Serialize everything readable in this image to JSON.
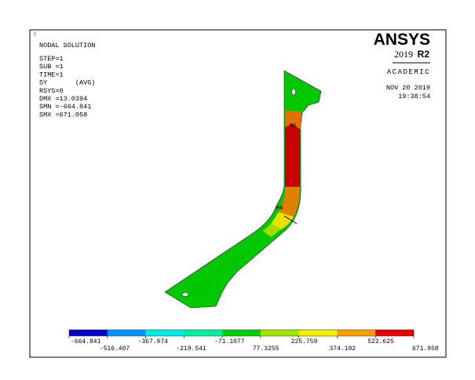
{
  "header": {
    "window_number": "1",
    "title": "NODAL SOLUTION",
    "info": [
      "STEP=1",
      "SUB =1",
      "TIME=1",
      "SY       (AVG)",
      "RSYS=0",
      "DMX =13.0394",
      "SMN =-664.841",
      "SMX =671.058"
    ]
  },
  "logo": {
    "brand": "ANSYS",
    "year": "2019",
    "release": "R2",
    "license": "ACADEMIC",
    "date": "NOV 20 2019",
    "time": "19:38:54"
  },
  "model": {
    "max_label": "MX",
    "min_label": "MN"
  },
  "legend": {
    "colors": [
      "#0000c8",
      "#0094ff",
      "#00e8e8",
      "#00f0a0",
      "#00d200",
      "#a0e600",
      "#f0f000",
      "#ffa000",
      "#e60000"
    ],
    "labels": [
      "-664.841",
      "-516.407",
      "-367.974",
      "-219.541",
      "-71.1077",
      "77.3255",
      "225.759",
      "374.192",
      "522.625",
      "671.058"
    ]
  }
}
